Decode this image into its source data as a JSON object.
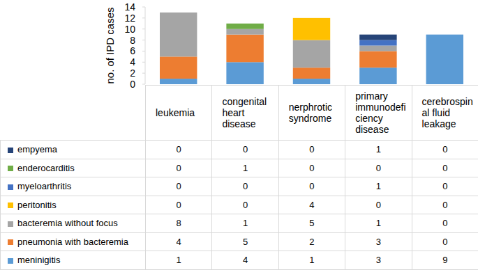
{
  "chart_data": {
    "type": "bar",
    "stacked": true,
    "y_label": "no. of IPD cases",
    "categories": [
      "leukemia",
      "congenital heart disease",
      "nerphrotic syndrome",
      "primary immunodeficiency disease",
      "cerebrospinal fluid leakage"
    ],
    "series": [
      {
        "name": "meninigitis",
        "color": "#5b9bd5",
        "values": [
          1,
          4,
          1,
          3,
          9
        ]
      },
      {
        "name": "pneumonia with bacteremia",
        "color": "#ed7d31",
        "values": [
          4,
          5,
          2,
          3,
          0
        ]
      },
      {
        "name": "bacteremia without focus",
        "color": "#a5a5a5",
        "values": [
          8,
          1,
          5,
          1,
          0
        ]
      },
      {
        "name": "peritonitis",
        "color": "#ffc000",
        "values": [
          0,
          0,
          4,
          0,
          0
        ]
      },
      {
        "name": "myeloarthritis",
        "color": "#4472c4",
        "values": [
          0,
          0,
          0,
          1,
          0
        ]
      },
      {
        "name": "enderocarditis",
        "color": "#70ad47",
        "values": [
          0,
          1,
          0,
          0,
          0
        ]
      },
      {
        "name": "empyema",
        "color": "#264478",
        "values": [
          0,
          0,
          0,
          1,
          0
        ]
      }
    ],
    "ylim": [
      0,
      14
    ],
    "yticks": [
      0,
      2,
      4,
      6,
      8,
      10,
      12,
      14
    ],
    "grid": false
  }
}
